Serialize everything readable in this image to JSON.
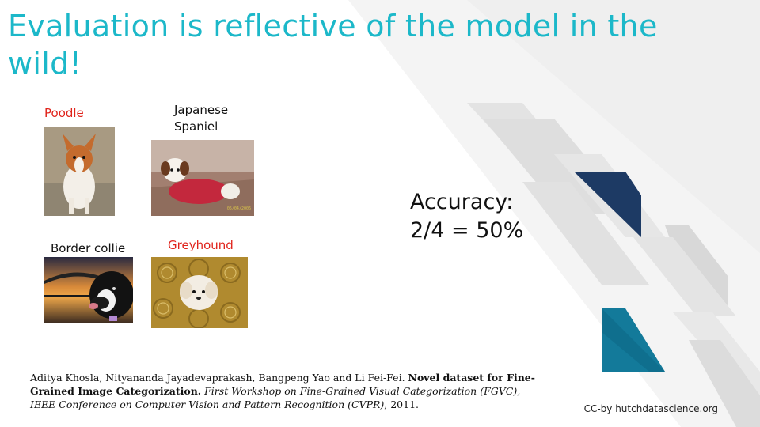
{
  "slide": {
    "title": "Evaluation is reflective of the model in the wild!",
    "images": [
      {
        "label": "Poodle",
        "label_color": "#e0231b",
        "depicts": "dog-photo"
      },
      {
        "label": "Japanese Spaniel",
        "label_color": "#111111",
        "depicts": "dog-photo"
      },
      {
        "label": "Border collie",
        "label_color": "#111111",
        "depicts": "dog-photo"
      },
      {
        "label": "Greyhound",
        "label_color": "#e0231b",
        "depicts": "dog-photo"
      }
    ],
    "photo_stamp": "05/04/2006",
    "accuracy": {
      "line1": "Accuracy:",
      "line2": "2/4 = 50%"
    },
    "citation": {
      "authors": "Aditya Khosla, Nityananda Jayadevaprakash, Bangpeng Yao and Li Fei-Fei. ",
      "title": "Novel dataset for Fine-Grained Image Categorization.",
      "venue": " First Workshop on Fine-Grained Visual Categorization (FGVC), IEEE Conference on Computer Vision and Pattern Recognition (CVPR)",
      "year": ", 2011."
    },
    "license": "CC-by hutchdatascience.org"
  },
  "colors": {
    "title": "#1cb8c9",
    "wrong_label": "#e0231b",
    "correct_label": "#111111",
    "navy": "#1d3a64",
    "teal": "#137a9a",
    "deco_gray": "#e6e6e6"
  }
}
